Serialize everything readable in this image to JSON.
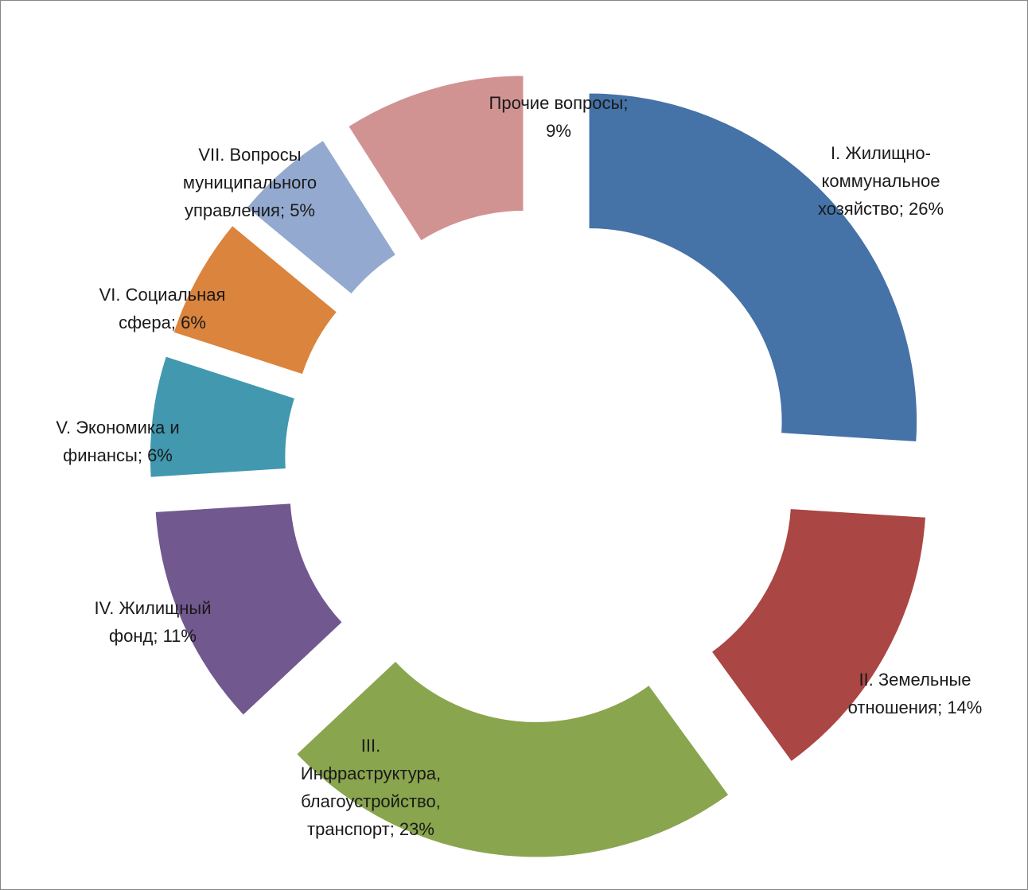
{
  "chart_data": {
    "type": "pie",
    "style": "exploded-doughnut",
    "title": "",
    "series": [
      {
        "values": [
          26,
          14,
          23,
          11,
          6,
          6,
          5,
          9
        ]
      }
    ],
    "categories": [
      "I. Жилищно-коммунальное хозяйство",
      "II. Земельные отношения",
      "III. Инфраструктура, благоустройство, транспорт",
      "IV. Жилищный фонд",
      "V. Экономика и финансы",
      "VI. Социальная сфера",
      "VII. Вопросы муниципального управления",
      "Прочие вопросы"
    ],
    "slices": [
      {
        "label": [
          "I. Жилищно-",
          "коммунальное",
          "хозяйство; 26%"
        ],
        "value": 26,
        "percent": "26%",
        "color": "#4572A7"
      },
      {
        "label": [
          "II. Земельные",
          "отношения; 14%"
        ],
        "value": 14,
        "percent": "14%",
        "color": "#AA4643"
      },
      {
        "label": [
          "III.",
          "Инфраструктура,",
          "благоустройство,",
          "транспорт; 23%"
        ],
        "value": 23,
        "percent": "23%",
        "color": "#89A54E"
      },
      {
        "label": [
          "IV. Жилищный",
          "фонд; 11%"
        ],
        "value": 11,
        "percent": "11%",
        "color": "#71588F"
      },
      {
        "label": [
          "V. Экономика и",
          "финансы; 6%"
        ],
        "value": 6,
        "percent": "6%",
        "color": "#4198AF"
      },
      {
        "label": [
          "VI. Социальная",
          "сфера; 6%"
        ],
        "value": 6,
        "percent": "6%",
        "color": "#DB843D"
      },
      {
        "label": [
          "VII. Вопросы",
          "муниципального",
          "управления; 5%"
        ],
        "value": 5,
        "percent": "5%",
        "color": "#93A9CF"
      },
      {
        "label": [
          "Прочие вопросы;",
          "9%"
        ],
        "value": 9,
        "percent": "9%",
        "color": "#D19392"
      }
    ],
    "legend": "none",
    "data_labels": "outside"
  }
}
